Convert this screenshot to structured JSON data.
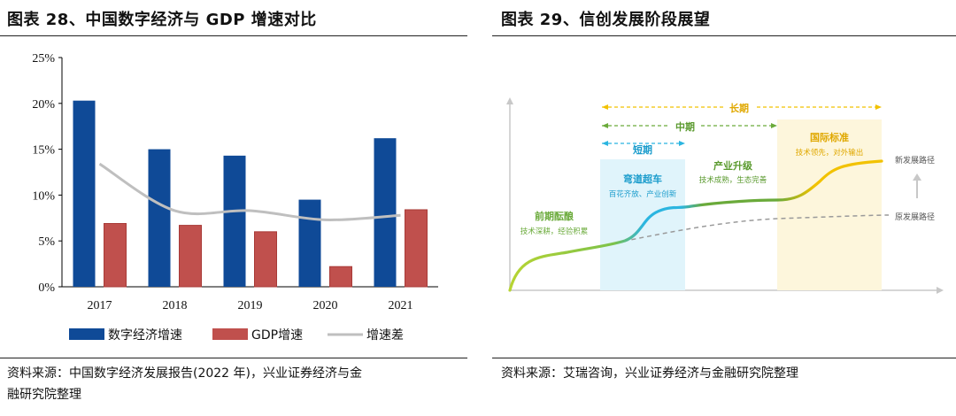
{
  "left": {
    "title": "图表 28、中国数字经济与 GDP 增速对比",
    "source": "资料来源：中国数字经济发展报告(2022 年)，兴业证券经济与金融研究院整理",
    "source_line1": "资料来源：中国数字经济发展报告(2022 年)，兴业证券经济与金",
    "source_line2": "融研究院整理"
  },
  "right": {
    "title": "图表 29、信创发展阶段展望",
    "source": "资料来源：艾瑞咨询，兴业证券经济与金融研究院整理",
    "diagram": {
      "range_long": "长期",
      "range_mid": "中期",
      "range_short": "短期",
      "stage1_title": "前期酝酿",
      "stage1_desc": "技术深耕，经验积累",
      "stage2_title": "弯道超车",
      "stage2_desc": "百花齐放、产业创新",
      "stage3_title": "产业升级",
      "stage3_desc": "技术成熟，生态完善",
      "stage4_title": "国际标准",
      "stage4_desc": "技术领先，对外输出",
      "path_new": "新发展路径",
      "path_old": "原发展路径"
    }
  },
  "colors": {
    "bar_digital": "#0f4a97",
    "bar_gdp": "#c0504d",
    "line_diff": "#bfbfbf",
    "green": "#6aaa3a",
    "cyan": "#2bb5e0",
    "yellow": "#f2c200"
  },
  "chart_data": {
    "type": "bar",
    "title": "图表 28、中国数字经济与 GDP 增速对比",
    "categories": [
      "2017",
      "2018",
      "2019",
      "2020",
      "2021"
    ],
    "series": [
      {
        "name": "数字经济增速",
        "type": "bar",
        "values": [
          20.3,
          15.0,
          14.3,
          9.5,
          16.2
        ]
      },
      {
        "name": "GDP增速",
        "type": "bar",
        "values": [
          6.9,
          6.7,
          6.0,
          2.2,
          8.4
        ]
      },
      {
        "name": "增速差",
        "type": "line",
        "values": [
          13.4,
          8.3,
          8.3,
          7.3,
          7.8
        ]
      }
    ],
    "ylim": [
      0,
      25
    ],
    "yticks": [
      "0%",
      "5%",
      "10%",
      "15%",
      "20%",
      "25%"
    ],
    "xlabel": "",
    "ylabel": "",
    "legend": "bottom"
  }
}
